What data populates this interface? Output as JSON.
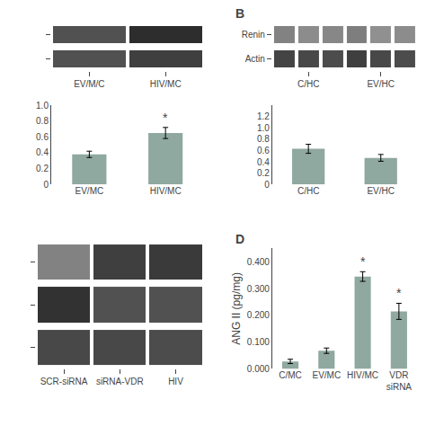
{
  "chart_data": [
    {
      "type": "heatmap",
      "tick_labels": "x",
      "categories": [
        "EV/M/C",
        "HIV/MC"
      ],
      "series": [
        {
          "values": [
            0.55,
            0.75
          ]
        },
        {
          "values": [
            0.55,
            0.65
          ]
        }
      ]
    },
    {
      "type": "bar",
      "categories": [
        "EV/MC",
        "HIV/MC"
      ],
      "values": [
        0.38,
        0.65
      ],
      "errors": [
        0.04,
        0.07
      ],
      "color": "#8fa8a0",
      "ylim": [
        0,
        1.0
      ],
      "yticks": [
        0,
        0.2,
        0.4,
        0.6,
        0.8,
        {
          "value": 1.0,
          "label": "1.0"
        }
      ],
      "grid": false,
      "annotations": [
        {
          "text": "*",
          "category": "HIV/MC"
        }
      ]
    },
    {
      "type": "heatmap",
      "title": "B",
      "categories": [
        null,
        "C/HC",
        null,
        null,
        "EV/HC",
        null
      ],
      "series": [
        {
          "name": "Renin",
          "values": [
            0.28,
            0.22,
            0.25,
            0.3,
            0.2,
            0.22
          ]
        },
        {
          "name": "Actin",
          "values": [
            0.62,
            0.6,
            0.58,
            0.65,
            0.6,
            0.58
          ]
        }
      ]
    },
    {
      "type": "bar",
      "categories": [
        "C/HC",
        "EV/HC"
      ],
      "values": [
        0.63,
        0.47
      ],
      "errors": [
        0.08,
        0.06
      ],
      "color": "#8fa8a0",
      "ylim": [
        0,
        1.4
      ],
      "yticks": [
        0,
        0.2,
        0.4,
        0.6,
        0.8,
        {
          "value": 1.0,
          "label": "1.0"
        },
        1.2
      ],
      "grid": false
    },
    {
      "type": "heatmap",
      "tick_labels": "x",
      "categories": [
        "SCR-siRNA",
        "siRNA-VDR",
        "HIV"
      ],
      "series": [
        {
          "values": [
            0.28,
            0.65,
            0.68
          ]
        },
        {
          "values": [
            0.72,
            0.55,
            0.55
          ]
        },
        {
          "values": [
            0.6,
            0.6,
            0.58
          ]
        }
      ]
    },
    {
      "type": "bar",
      "title": "D",
      "categories": [
        "C/MC",
        "EV/MC",
        "HIV/MC",
        "VDR\nsiRNA"
      ],
      "values": [
        0.028,
        0.068,
        0.345,
        0.215
      ],
      "errors": [
        0.008,
        0.01,
        0.018,
        0.03
      ],
      "color": "#8fa8a0",
      "ylim": [
        0,
        0.45
      ],
      "yticks": [
        {
          "value": 0,
          "label": "0.000"
        },
        {
          "value": 0.1,
          "label": "0.100"
        },
        {
          "value": 0.2,
          "label": "0.200"
        },
        {
          "value": 0.3,
          "label": "0.300"
        },
        {
          "value": 0.4,
          "label": "0.400"
        }
      ],
      "ylabel": "ANG II (pg/mg)",
      "grid": false,
      "annotations": [
        {
          "text": "*",
          "category": "HIV/MC"
        },
        {
          "text": "*",
          "category": "VDR\nsiRNA"
        }
      ]
    }
  ]
}
